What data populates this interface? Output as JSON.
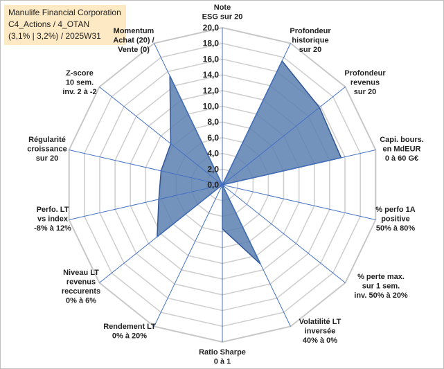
{
  "header": {
    "line1": "Manulife Financial Corporation",
    "line2": "C4_Actions / 4_OTAN",
    "line3": "(3,1% | 3,2%) / 2025W31"
  },
  "chart_data": {
    "type": "radar",
    "ylim": [
      0,
      20
    ],
    "ticks": [
      "0,0",
      "2,0",
      "4,0",
      "6,0",
      "8,0",
      "10,0",
      "12,0",
      "14,0",
      "16,0",
      "18,0",
      "20,0"
    ],
    "axes": [
      {
        "label": [
          "Note",
          "ESG sur 20"
        ],
        "value": 0
      },
      {
        "label": [
          "Profondeur",
          "historique",
          "sur 20"
        ],
        "value": 17.5
      },
      {
        "label": [
          "Profondeur",
          "revenus",
          "sur 20"
        ],
        "value": 15.8
      },
      {
        "label": [
          "Capi. bours.",
          "en MdEUR",
          "0 à 60 G€"
        ],
        "value": 15.5
      },
      {
        "label": [
          "% perfo 1A",
          "positive",
          "50% à 80%"
        ],
        "value": 0
      },
      {
        "label": [
          "% perte max.",
          "sur 1 sem.",
          "inv. 50% à 20%"
        ],
        "value": 0
      },
      {
        "label": [
          "Volatilité LT",
          "inversée",
          "40% à 0%"
        ],
        "value": 11.2
      },
      {
        "label": [
          "Ratio Sharpe",
          "0 à 1"
        ],
        "value": 5.6
      },
      {
        "label": [
          "Rendement LT",
          "0% à 20%"
        ],
        "value": 0
      },
      {
        "label": [
          "Niveau LT",
          "revenus",
          "reccurents",
          "0% à 6%"
        ],
        "value": 10.6
      },
      {
        "label": [
          "Perfo. LT",
          "vs index",
          "-8% à 12%"
        ],
        "value": 8.3
      },
      {
        "label": [
          "Régularité",
          "croissance",
          "sur 20"
        ],
        "value": 8.0
      },
      {
        "label": [
          "Z-score",
          "10 sem.",
          "inv. 2 à -2"
        ],
        "value": 8.4
      },
      {
        "label": [
          "Momentum",
          "Achat (20) /",
          "Vente (0)"
        ],
        "value": 15.4
      }
    ],
    "colors": {
      "fill": "#5b7fb0",
      "stroke": "#2f5597",
      "grid": "#d0d0d0",
      "spoke": "#4472c4"
    }
  }
}
